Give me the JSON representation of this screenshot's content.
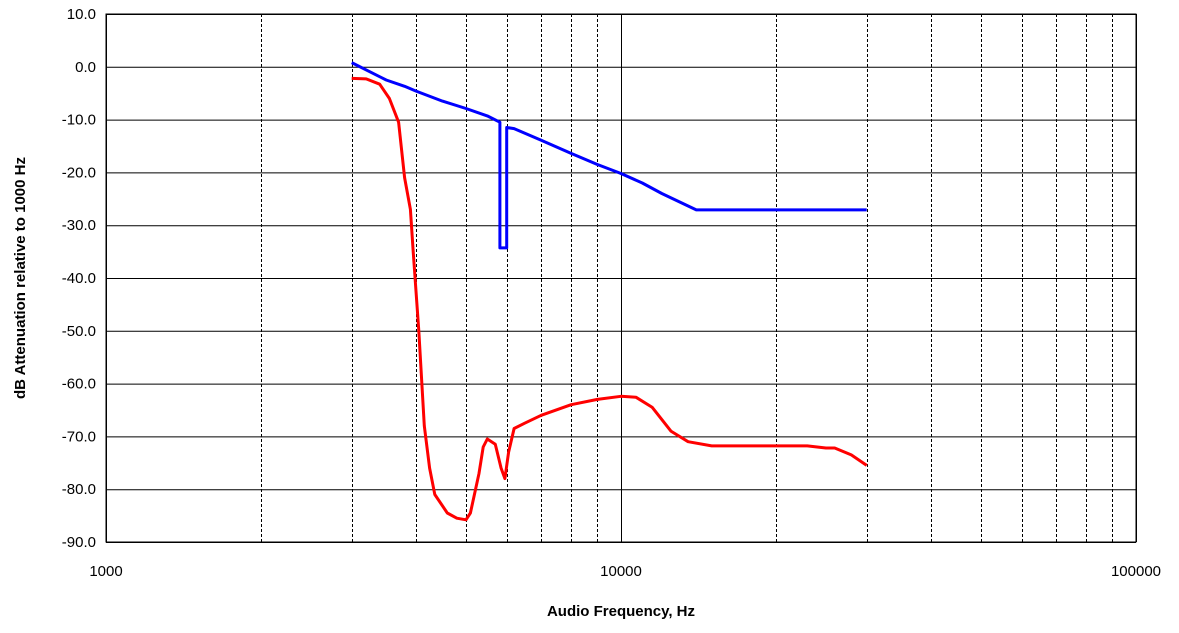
{
  "chart_data": {
    "type": "line",
    "title": "",
    "xlabel": "Audio Frequency, Hz",
    "ylabel": "dB Attenuation relative to 1000 Hz",
    "x_scale": "log",
    "xlim": [
      1000,
      100000
    ],
    "ylim": [
      -90,
      10
    ],
    "x_ticks": [
      1000,
      10000,
      100000
    ],
    "x_tick_labels": [
      "1000",
      "10000",
      "100000"
    ],
    "y_ticks": [
      10,
      0,
      -10,
      -20,
      -30,
      -40,
      -50,
      -60,
      -70,
      -80,
      -90
    ],
    "y_tick_labels": [
      "10.0",
      "0.0",
      "-10.0",
      "-20.0",
      "-30.0",
      "-40.0",
      "-50.0",
      "-60.0",
      "-70.0",
      "-80.0",
      "-90.0"
    ],
    "grid": true,
    "legend": "none",
    "series": [
      {
        "color": "#0000ff",
        "points": [
          [
            3000,
            0.8
          ],
          [
            3500,
            -2.5
          ],
          [
            3800,
            -3.7
          ],
          [
            4000,
            -4.6
          ],
          [
            4500,
            -6.5
          ],
          [
            5000,
            -7.9
          ],
          [
            5500,
            -9.3
          ],
          [
            5820,
            -10.5
          ],
          [
            5820,
            -34.3
          ],
          [
            6000,
            -34.3
          ],
          [
            6000,
            -11.5
          ],
          [
            6200,
            -11.7
          ],
          [
            7000,
            -13.9
          ],
          [
            8000,
            -16.4
          ],
          [
            9000,
            -18.5
          ],
          [
            10000,
            -20.2
          ],
          [
            11000,
            -22.0
          ],
          [
            12000,
            -24.0
          ],
          [
            13000,
            -25.6
          ],
          [
            14000,
            -27.1
          ],
          [
            20000,
            -27.1
          ],
          [
            25000,
            -27.1
          ],
          [
            30000,
            -27.1
          ]
        ]
      },
      {
        "color": "#ff0000",
        "points": [
          [
            3000,
            -2.2
          ],
          [
            3200,
            -2.3
          ],
          [
            3400,
            -3.3
          ],
          [
            3550,
            -6.0
          ],
          [
            3700,
            -10.5
          ],
          [
            3800,
            -21.0
          ],
          [
            3900,
            -27.0
          ],
          [
            3950,
            -35.0
          ],
          [
            4050,
            -50.0
          ],
          [
            4150,
            -68.0
          ],
          [
            4250,
            -76.0
          ],
          [
            4350,
            -81.0
          ],
          [
            4600,
            -84.5
          ],
          [
            4800,
            -85.5
          ],
          [
            5000,
            -85.8
          ],
          [
            5100,
            -84.5
          ],
          [
            5300,
            -77.0
          ],
          [
            5400,
            -72.0
          ],
          [
            5500,
            -70.5
          ],
          [
            5700,
            -71.5
          ],
          [
            5850,
            -76.0
          ],
          [
            5950,
            -78.0
          ],
          [
            6050,
            -73.0
          ],
          [
            6200,
            -68.5
          ],
          [
            6500,
            -67.5
          ],
          [
            7000,
            -66.0
          ],
          [
            8000,
            -64.0
          ],
          [
            9000,
            -63.0
          ],
          [
            10000,
            -62.4
          ],
          [
            10700,
            -62.6
          ],
          [
            11500,
            -64.5
          ],
          [
            12500,
            -69.0
          ],
          [
            13500,
            -71.0
          ],
          [
            15000,
            -71.8
          ],
          [
            20000,
            -71.8
          ],
          [
            23000,
            -71.8
          ],
          [
            25000,
            -72.2
          ],
          [
            26000,
            -72.2
          ],
          [
            28000,
            -73.5
          ],
          [
            30000,
            -75.5
          ]
        ]
      }
    ]
  }
}
